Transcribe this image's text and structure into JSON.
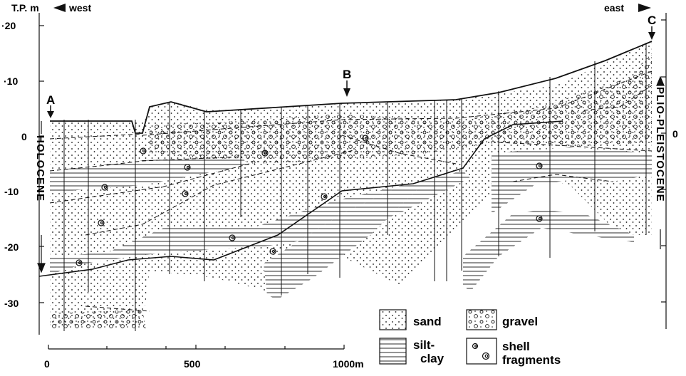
{
  "header": {
    "left_label": "T.P. m",
    "west_label": "west",
    "east_label": "east"
  },
  "axis_left": {
    "ticks": [
      "·20",
      "·10",
      "0",
      "-10",
      "-20",
      "-30"
    ]
  },
  "axis_right": {
    "ticks": [
      "0"
    ]
  },
  "boreholes": {
    "a_label": "A",
    "b_label": "B",
    "c_label": "C"
  },
  "units": {
    "holocene": "HOLOCENE",
    "plio_pleistocene": "PLIO-PLEISTOCENE"
  },
  "distance_scale": {
    "ticks": [
      "0",
      "500",
      "1000m"
    ]
  },
  "legend": {
    "sand": "sand",
    "gravel": "gravel",
    "silt_clay_line1": "silt-",
    "silt_clay_line2": "clay",
    "shell_line1": "shell",
    "shell_line2": "fragments"
  },
  "colors": {
    "ink": "#111111",
    "paper": "#ffffff"
  }
}
